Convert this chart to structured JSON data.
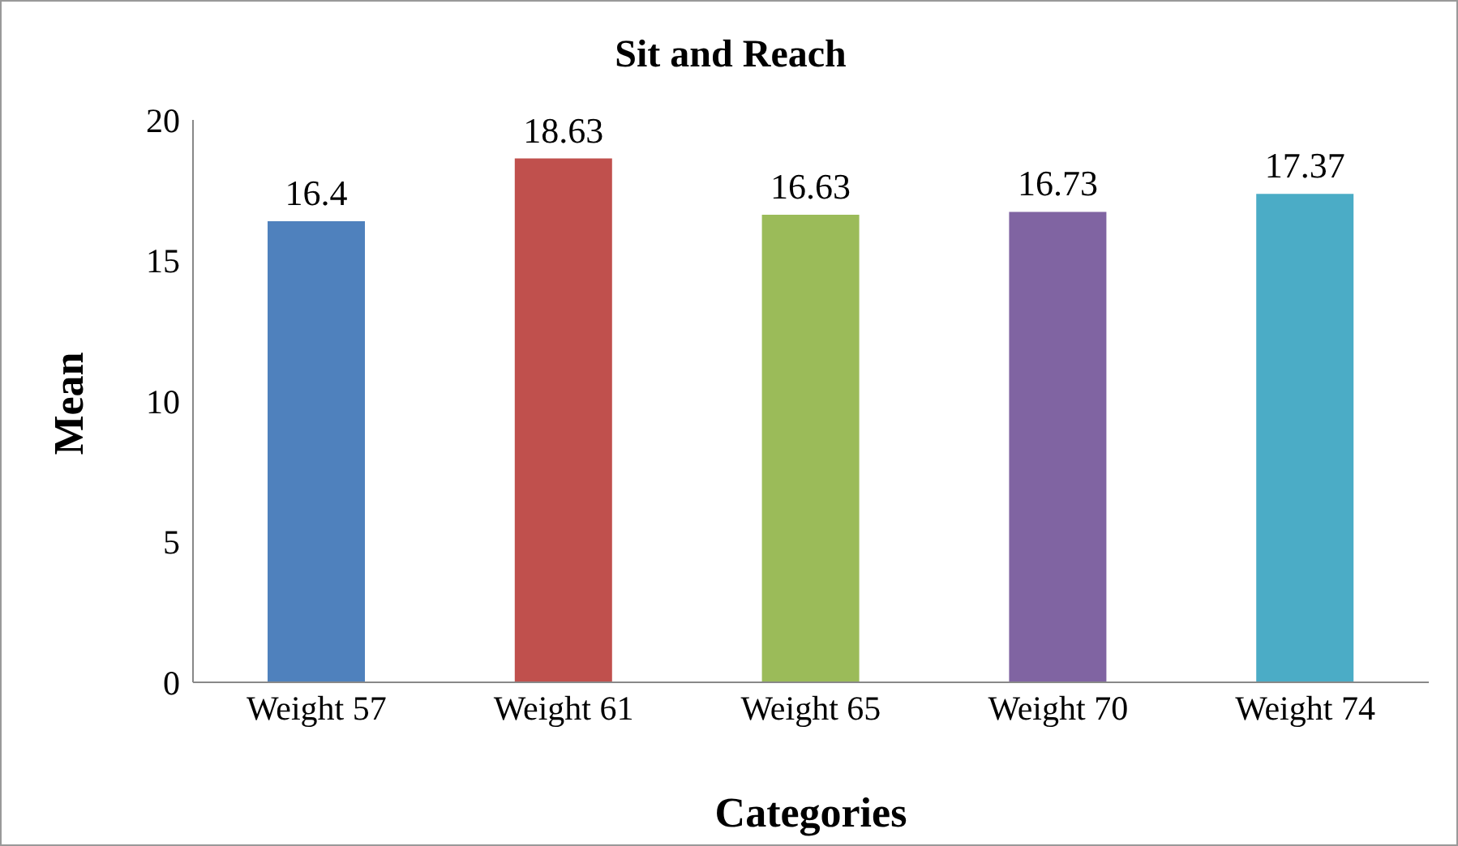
{
  "chart_data": {
    "type": "bar",
    "title": "Sit and Reach",
    "xlabel": "Categories",
    "ylabel": "Mean",
    "categories": [
      "Weight 57",
      "Weight 61",
      "Weight 65",
      "Weight 70",
      "Weight 74"
    ],
    "values": [
      16.4,
      18.63,
      16.63,
      16.73,
      17.37
    ],
    "colors": [
      "#4f81bd",
      "#c0504d",
      "#9bbb59",
      "#8064a2",
      "#4bacc6"
    ],
    "ylim": [
      0,
      20
    ],
    "yticks": [
      0,
      5,
      10,
      15,
      20
    ],
    "grid": false,
    "data_labels": true
  }
}
